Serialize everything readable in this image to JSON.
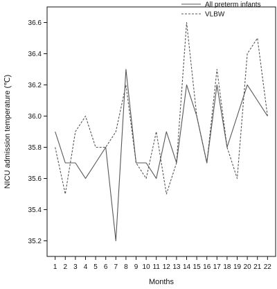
{
  "chart_data": {
    "type": "line",
    "xlabel": "Months",
    "ylabel": "NICU admission temperature (℃)",
    "x": [
      1,
      2,
      3,
      4,
      5,
      6,
      7,
      8,
      9,
      10,
      11,
      12,
      13,
      14,
      15,
      16,
      17,
      18,
      19,
      20,
      21,
      22
    ],
    "xlim": [
      0.2,
      22.8
    ],
    "ylim": [
      35.1,
      36.7
    ],
    "yticks": [
      35.2,
      35.4,
      35.6,
      35.8,
      36.0,
      36.2,
      36.4,
      36.6
    ],
    "grid": false,
    "legend_position": "top-right",
    "series": [
      {
        "name": "All preterm infants",
        "style": "solid",
        "color": "#555555",
        "values": [
          35.9,
          35.7,
          35.7,
          35.6,
          35.7,
          35.8,
          35.2,
          36.3,
          35.7,
          35.7,
          35.6,
          35.9,
          35.7,
          36.2,
          36.0,
          35.7,
          36.2,
          35.8,
          36.0,
          36.2,
          36.1,
          36.0
        ]
      },
      {
        "name": "VLBW",
        "style": "dashed",
        "color": "#555555",
        "values": [
          35.8,
          35.5,
          35.9,
          36.0,
          35.8,
          35.8,
          35.9,
          36.2,
          35.7,
          35.6,
          35.9,
          35.5,
          35.7,
          36.6,
          36.0,
          35.7,
          36.3,
          35.8,
          35.6,
          36.4,
          36.5,
          36.0
        ]
      }
    ]
  }
}
